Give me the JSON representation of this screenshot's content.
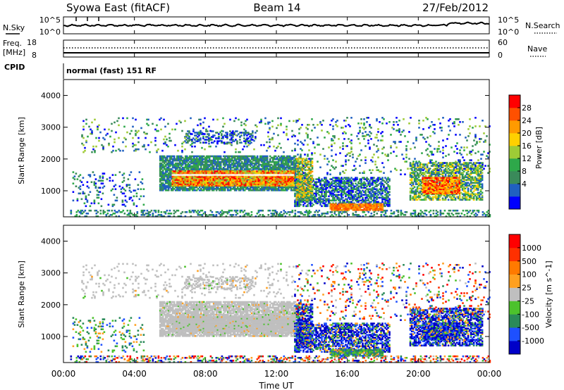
{
  "header": {
    "station": "Syowa East (fitACF)",
    "beam": "Beam 14",
    "date": "27/Feb/2012"
  },
  "noise_panel": {
    "left_label": "N.Sky",
    "right_label": "N.Search",
    "left_ticks": [
      "10^5",
      "10^0"
    ],
    "right_ticks": [
      "10^5",
      "10^0"
    ]
  },
  "freq_panel": {
    "left_label_1": "Freq.",
    "left_label_2": "[MHz]",
    "right_label": "Nave",
    "left_ticks": [
      "18",
      "8"
    ],
    "right_ticks": [
      "60",
      "0"
    ]
  },
  "cpid_panel": {
    "label": "CPID",
    "mode_text": "normal (fast) 151 RF"
  },
  "x_axis": {
    "label": "Time UT",
    "ticks": [
      "00:00",
      "04:00",
      "08:00",
      "12:00",
      "16:00",
      "20:00",
      "00:00"
    ]
  },
  "power_panel": {
    "ylabel": "Slant Range [km]",
    "yticks": [
      "4000",
      "3000",
      "2000",
      "1000"
    ],
    "colorbar_label": "Power [dB]",
    "colorbar_ticks": [
      "28",
      "24",
      "20",
      "16",
      "12",
      "8",
      "4"
    ],
    "colors": [
      "#0000ff",
      "#2060c0",
      "#3a8a5a",
      "#2ea84a",
      "#9ecb36",
      "#ffd000",
      "#ff9a00",
      "#ff5000",
      "#ff0000"
    ]
  },
  "velocity_panel": {
    "ylabel": "Slant Range [km]",
    "yticks": [
      "4000",
      "3000",
      "2000",
      "1000"
    ],
    "colorbar_label": "Velocity [m s^-1]",
    "colorbar_ticks": [
      "1000",
      "500",
      "100",
      "25",
      "-25",
      "-100",
      "-500",
      "-1000"
    ],
    "colors": [
      "#0000c8",
      "#1e50ff",
      "#2a8a58",
      "#4cc22c",
      "#bfbfbf",
      "#ffa020",
      "#ff7a00",
      "#ff3000",
      "#ff0000"
    ]
  },
  "chart_data": {
    "type": "heatmap",
    "x_range": [
      "00:00",
      "00:00"
    ],
    "y_range_km": [
      180,
      4500
    ],
    "power_db_range": [
      0,
      30
    ],
    "velocity_range": [
      -1000,
      1000
    ],
    "grid": false
  }
}
